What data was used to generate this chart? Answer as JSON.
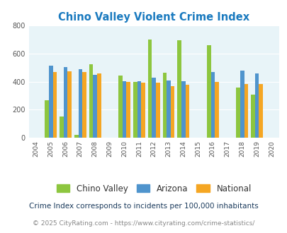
{
  "title": "Chino Valley Violent Crime Index",
  "subtitle": "Crime Index corresponds to incidents per 100,000 inhabitants",
  "footer": "© 2025 CityRating.com - https://www.cityrating.com/crime-statistics/",
  "years": [
    2005,
    2006,
    2007,
    2008,
    2010,
    2011,
    2012,
    2013,
    2014,
    2016,
    2018,
    2019
  ],
  "chino_valley": [
    265,
    150,
    20,
    525,
    445,
    400,
    700,
    465,
    695,
    660,
    355,
    305
  ],
  "arizona": [
    515,
    505,
    490,
    450,
    405,
    405,
    430,
    408,
    403,
    470,
    478,
    458
  ],
  "national": [
    468,
    473,
    469,
    458,
    400,
    390,
    393,
    368,
    378,
    400,
    383,
    383
  ],
  "color_chino": "#8dc63f",
  "color_arizona": "#4f94cd",
  "color_national": "#f5a623",
  "xlim": [
    2003.5,
    2020.5
  ],
  "ylim": [
    0,
    800
  ],
  "yticks": [
    0,
    200,
    400,
    600,
    800
  ],
  "xticks": [
    2004,
    2005,
    2006,
    2007,
    2008,
    2009,
    2010,
    2011,
    2012,
    2013,
    2014,
    2015,
    2016,
    2017,
    2018,
    2019,
    2020
  ],
  "bg_color": "#e8f4f8",
  "bar_width": 0.27,
  "title_color": "#1a7abf",
  "subtitle_color": "#1a3a5c",
  "footer_color": "#888888",
  "footer_link_color": "#4f94cd",
  "legend_labels": [
    "Chino Valley",
    "Arizona",
    "National"
  ]
}
